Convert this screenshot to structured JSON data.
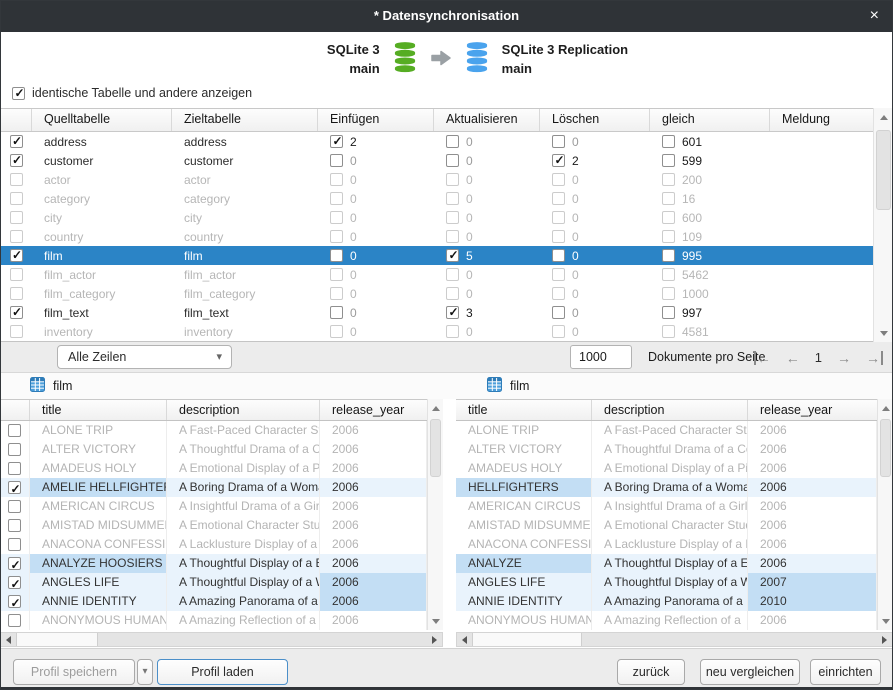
{
  "window": {
    "title": "* Datensynchronisation"
  },
  "icons": {
    "close": "×",
    "dropdown": "▾",
    "prev": "←",
    "next": "→",
    "source_db_icon": "database-green",
    "target_db_icon": "database-blue",
    "flow_arrow_icon": "arrow-right",
    "table_icon": "table-grid-blue"
  },
  "colors": {
    "titlebar": "#2f3337",
    "selected_row": "#2b84c6",
    "row_highlight": "#e9f3fc",
    "diff_cell": "#c3def4",
    "source_db": "#56ad23",
    "target_db": "#4aa3ed",
    "strip": "#ececec",
    "dim_text": "#b6b6b6"
  },
  "flow": {
    "source_name": "SQLite 3",
    "source_db": "main",
    "target_name": "SQLite 3 Replication",
    "target_db": "main"
  },
  "options": {
    "show_identical_label": "identische Tabelle und andere anzeigen",
    "show_identical_checked": true
  },
  "sync_table": {
    "columns": [
      "Quelltabelle",
      "Zieltabelle",
      "Einfügen",
      "Aktualisieren",
      "Löschen",
      "gleich",
      "Meldung"
    ],
    "rows": [
      {
        "checked": true,
        "state": "act",
        "source": "address",
        "target": "address",
        "insert": {
          "checked": true,
          "value": "2"
        },
        "update": {
          "checked": false,
          "value": "0"
        },
        "del": {
          "checked": false,
          "value": "0"
        },
        "equal": {
          "checked": false,
          "value": "601"
        },
        "message": ""
      },
      {
        "checked": true,
        "state": "act",
        "source": "customer",
        "target": "customer",
        "insert": {
          "checked": false,
          "value": "0"
        },
        "update": {
          "checked": false,
          "value": "0"
        },
        "del": {
          "checked": true,
          "value": "2"
        },
        "equal": {
          "checked": false,
          "value": "599"
        },
        "message": ""
      },
      {
        "checked": false,
        "state": "dim",
        "source": "actor",
        "target": "actor",
        "insert": {
          "checked": false,
          "value": "0"
        },
        "update": {
          "checked": false,
          "value": "0"
        },
        "del": {
          "checked": false,
          "value": "0"
        },
        "equal": {
          "checked": false,
          "value": "200"
        },
        "message": ""
      },
      {
        "checked": false,
        "state": "dim",
        "source": "category",
        "target": "category",
        "insert": {
          "checked": false,
          "value": "0"
        },
        "update": {
          "checked": false,
          "value": "0"
        },
        "del": {
          "checked": false,
          "value": "0"
        },
        "equal": {
          "checked": false,
          "value": "16"
        },
        "message": ""
      },
      {
        "checked": false,
        "state": "dim",
        "source": "city",
        "target": "city",
        "insert": {
          "checked": false,
          "value": "0"
        },
        "update": {
          "checked": false,
          "value": "0"
        },
        "del": {
          "checked": false,
          "value": "0"
        },
        "equal": {
          "checked": false,
          "value": "600"
        },
        "message": ""
      },
      {
        "checked": false,
        "state": "dim",
        "source": "country",
        "target": "country",
        "insert": {
          "checked": false,
          "value": "0"
        },
        "update": {
          "checked": false,
          "value": "0"
        },
        "del": {
          "checked": false,
          "value": "0"
        },
        "equal": {
          "checked": false,
          "value": "109"
        },
        "message": ""
      },
      {
        "checked": true,
        "state": "sel",
        "source": "film",
        "target": "film",
        "insert": {
          "checked": false,
          "value": "0"
        },
        "update": {
          "checked": true,
          "value": "5"
        },
        "del": {
          "checked": false,
          "value": "0"
        },
        "equal": {
          "checked": false,
          "value": "995"
        },
        "message": ""
      },
      {
        "checked": false,
        "state": "dim",
        "source": "film_actor",
        "target": "film_actor",
        "insert": {
          "checked": false,
          "value": "0"
        },
        "update": {
          "checked": false,
          "value": "0"
        },
        "del": {
          "checked": false,
          "value": "0"
        },
        "equal": {
          "checked": false,
          "value": "5462"
        },
        "message": ""
      },
      {
        "checked": false,
        "state": "dim",
        "source": "film_category",
        "target": "film_category",
        "insert": {
          "checked": false,
          "value": "0"
        },
        "update": {
          "checked": false,
          "value": "0"
        },
        "del": {
          "checked": false,
          "value": "0"
        },
        "equal": {
          "checked": false,
          "value": "1000"
        },
        "message": ""
      },
      {
        "checked": true,
        "state": "act",
        "source": "film_text",
        "target": "film_text",
        "insert": {
          "checked": false,
          "value": "0"
        },
        "update": {
          "checked": true,
          "value": "3"
        },
        "del": {
          "checked": false,
          "value": "0"
        },
        "equal": {
          "checked": false,
          "value": "997"
        },
        "message": ""
      },
      {
        "checked": false,
        "state": "dim",
        "source": "inventory",
        "target": "inventory",
        "insert": {
          "checked": false,
          "value": "0"
        },
        "update": {
          "checked": false,
          "value": "0"
        },
        "del": {
          "checked": false,
          "value": "0"
        },
        "equal": {
          "checked": false,
          "value": "4581"
        },
        "message": ""
      }
    ]
  },
  "toolbar": {
    "rows_filter_value": "Alle Zeilen",
    "page_size_value": "1000",
    "page_size_label": "Dokumente pro Seite",
    "page_number": "1"
  },
  "left_panel": {
    "table_name": "film",
    "columns": [
      "title",
      "description",
      "release_year"
    ],
    "rows": [
      {
        "checked": false,
        "highlight": false,
        "diff": "",
        "title": "ALONE TRIP",
        "description": "A Fast-Paced Character Stuc",
        "release_year": "2006"
      },
      {
        "checked": false,
        "highlight": false,
        "diff": "",
        "title": "ALTER VICTORY",
        "description": "A Thoughtful Drama of a Co",
        "release_year": "2006"
      },
      {
        "checked": false,
        "highlight": false,
        "diff": "",
        "title": "AMADEUS HOLY",
        "description": "A Emotional Display of a Pic",
        "release_year": "2006"
      },
      {
        "checked": true,
        "highlight": true,
        "diff": "title",
        "title": "AMELIE HELLFIGHTERS",
        "description": "A Boring Drama of a Woma",
        "release_year": "2006"
      },
      {
        "checked": false,
        "highlight": false,
        "diff": "",
        "title": "AMERICAN CIRCUS",
        "description": "A Insightful Drama of a Girl",
        "release_year": "2006"
      },
      {
        "checked": false,
        "highlight": false,
        "diff": "",
        "title": "AMISTAD MIDSUMMER",
        "description": "A Emotional Character Stud",
        "release_year": "2006"
      },
      {
        "checked": false,
        "highlight": false,
        "diff": "",
        "title": "ANACONA CONFESSIO",
        "description": "A Lacklusture Display of a D",
        "release_year": "2006"
      },
      {
        "checked": true,
        "highlight": true,
        "diff": "title",
        "title": "ANALYZE HOOSIERS",
        "description": "A Thoughtful Display of a E",
        "release_year": "2006"
      },
      {
        "checked": true,
        "highlight": true,
        "diff": "year",
        "title": "ANGLES LIFE",
        "description": "A Thoughtful Display of a W",
        "release_year": "2006"
      },
      {
        "checked": true,
        "highlight": true,
        "diff": "year",
        "title": "ANNIE IDENTITY",
        "description": "A Amazing Panorama of a P",
        "release_year": "2006"
      },
      {
        "checked": false,
        "highlight": false,
        "diff": "",
        "title": "ANONYMOUS HUMAN",
        "description": "A Amazing Reflection of a",
        "release_year": "2006"
      }
    ]
  },
  "right_panel": {
    "table_name": "film",
    "columns": [
      "title",
      "description",
      "release_year"
    ],
    "rows": [
      {
        "highlight": false,
        "diff": "",
        "title": "ALONE TRIP",
        "description": "A Fast-Paced Character Stuc",
        "release_year": "2006"
      },
      {
        "highlight": false,
        "diff": "",
        "title": "ALTER VICTORY",
        "description": "A Thoughtful Drama of a Co",
        "release_year": "2006"
      },
      {
        "highlight": false,
        "diff": "",
        "title": "AMADEUS HOLY",
        "description": "A Emotional Display of a Pic",
        "release_year": "2006"
      },
      {
        "highlight": true,
        "diff": "title",
        "title": "HELLFIGHTERS",
        "description": "A Boring Drama of a Woma",
        "release_year": "2006"
      },
      {
        "highlight": false,
        "diff": "",
        "title": "AMERICAN CIRCUS",
        "description": "A Insightful Drama of a Girl",
        "release_year": "2006"
      },
      {
        "highlight": false,
        "diff": "",
        "title": "AMISTAD MIDSUMMER",
        "description": "A Emotional Character Stud",
        "release_year": "2006"
      },
      {
        "highlight": false,
        "diff": "",
        "title": "ANACONA CONFESSIO",
        "description": "A Lacklusture Display of a D",
        "release_year": "2006"
      },
      {
        "highlight": true,
        "diff": "title",
        "title": "ANALYZE",
        "description": "A Thoughtful Display of a E",
        "release_year": "2006"
      },
      {
        "highlight": true,
        "diff": "year",
        "title": "ANGLES LIFE",
        "description": "A Thoughtful Display of a W",
        "release_year": "2007"
      },
      {
        "highlight": true,
        "diff": "year",
        "title": "ANNIE IDENTITY",
        "description": "A Amazing Panorama of a P",
        "release_year": "2010"
      },
      {
        "highlight": false,
        "diff": "",
        "title": "ANONYMOUS HUMAN",
        "description": "A Amazing Reflection of a",
        "release_year": "2006"
      }
    ]
  },
  "footer": {
    "save_profile_label": "Profil speichern",
    "load_profile_label": "Profil laden",
    "back_label": "zurück",
    "recompare_label": "neu vergleichen",
    "setup_label": "einrichten"
  }
}
